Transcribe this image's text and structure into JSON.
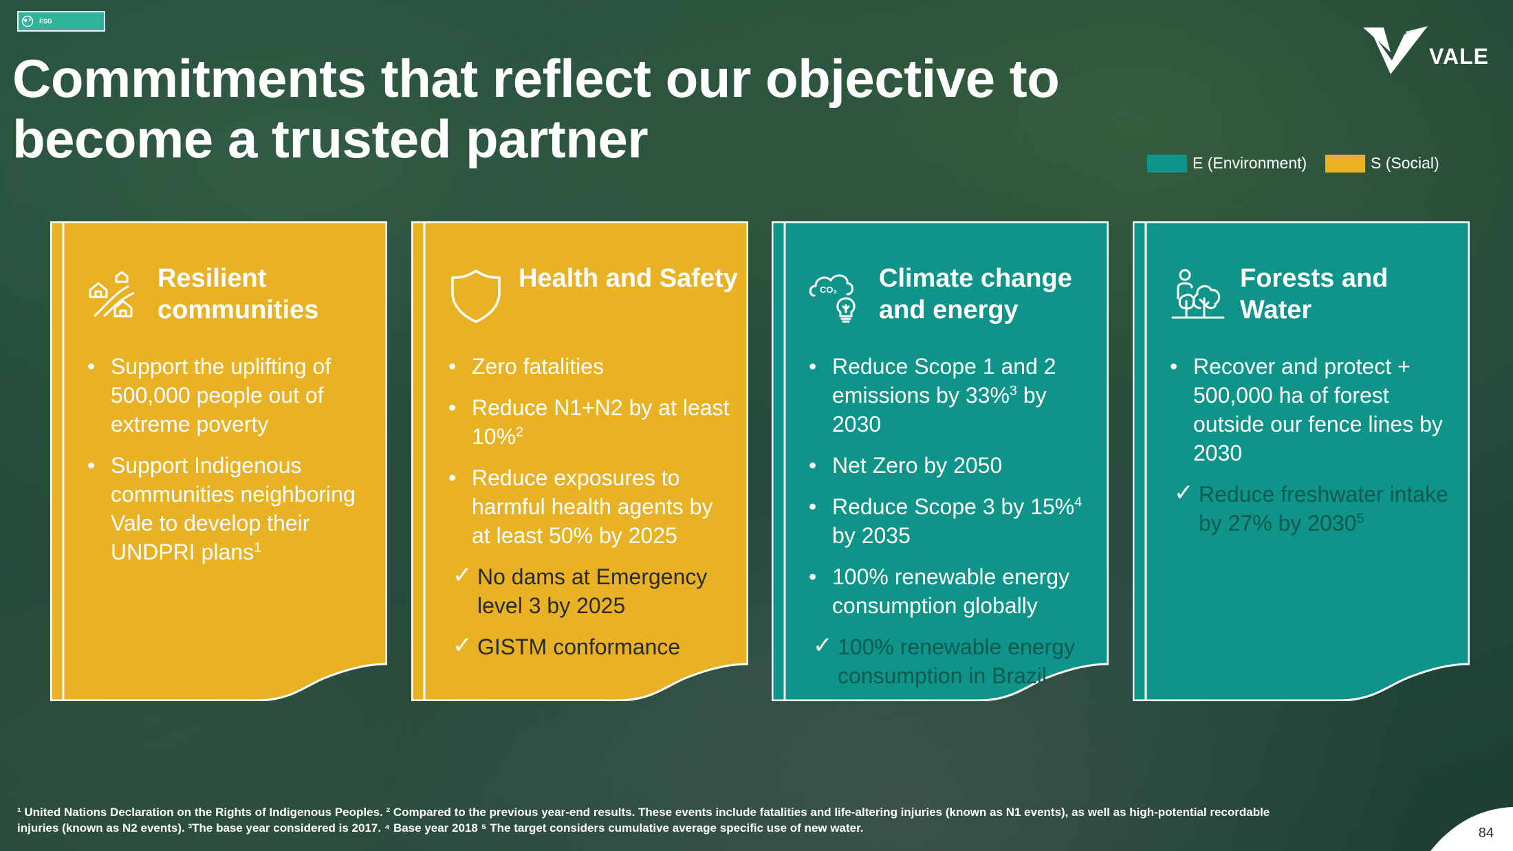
{
  "tag": {
    "label": "ESG"
  },
  "title": "Commitments that reflect our objective to become a trusted partner",
  "logo": {
    "word": "VALE"
  },
  "legend": {
    "environment": {
      "label": "E (Environment)",
      "color": "#0e9488"
    },
    "social": {
      "label": "S (Social)",
      "color": "#e9b124"
    }
  },
  "cards": [
    {
      "title": "Resilient communities",
      "icon": "houses-icon",
      "items": [
        {
          "text": "Support the uplifting of 500,000 people out of extreme poverty",
          "sup": "",
          "tail": ""
        },
        {
          "text": "Support Indigenous communities neighboring Vale to develop their UNDPRI plans",
          "sup": "1",
          "tail": ""
        }
      ]
    },
    {
      "title": "Health and Safety",
      "icon": "shield-icon",
      "items": [
        {
          "text": "Zero fatalities",
          "sup": "",
          "tail": ""
        },
        {
          "text": "Reduce N1+N2 by at least 10%",
          "sup": "2",
          "tail": ""
        },
        {
          "text": "Reduce exposures to harmful health agents by at least 50% by 2025",
          "sup": "",
          "tail": ""
        }
      ],
      "checks": [
        {
          "text": "No dams at Emergency level 3 by 2025"
        },
        {
          "text": "GISTM conformance"
        }
      ]
    },
    {
      "title": "Climate change and energy",
      "icon": "co2-cloud-lightbulb-icon",
      "items": [
        {
          "text": "Reduce Scope 1 and 2 emissions by 33%",
          "sup": "3",
          "tail": " by 2030"
        },
        {
          "text": "Net Zero by 2050",
          "sup": "",
          "tail": ""
        },
        {
          "text": "Reduce Scope 3 by 15%",
          "sup": "4",
          "tail": " by 2035"
        },
        {
          "text": "100% renewable energy consumption globally",
          "sup": "",
          "tail": ""
        }
      ],
      "checks": [
        {
          "text": "100% renewable energy consumption in Brazil"
        }
      ]
    },
    {
      "title": "Forests and Water",
      "icon": "trees-person-icon",
      "items": [
        {
          "text": "Recover and protect + 500,000 ha of forest outside our fence lines by 2030",
          "sup": "",
          "tail": ""
        }
      ],
      "checks": [
        {
          "text": "Reduce freshwater intake by 27% by 2030",
          "sup": "5"
        }
      ]
    }
  ],
  "footnote": "¹ United Nations Declaration on the Rights of Indigenous Peoples. ² Compared to the previous year-end results. These events include fatalities and life-altering injuries (known as N1 events), as well as high-potential recordable injuries (known as N2 events). ³The base year considered is 2017. ⁴ Base year 2018 ⁵ The target considers cumulative average specific use of new water.",
  "page_number": "84"
}
